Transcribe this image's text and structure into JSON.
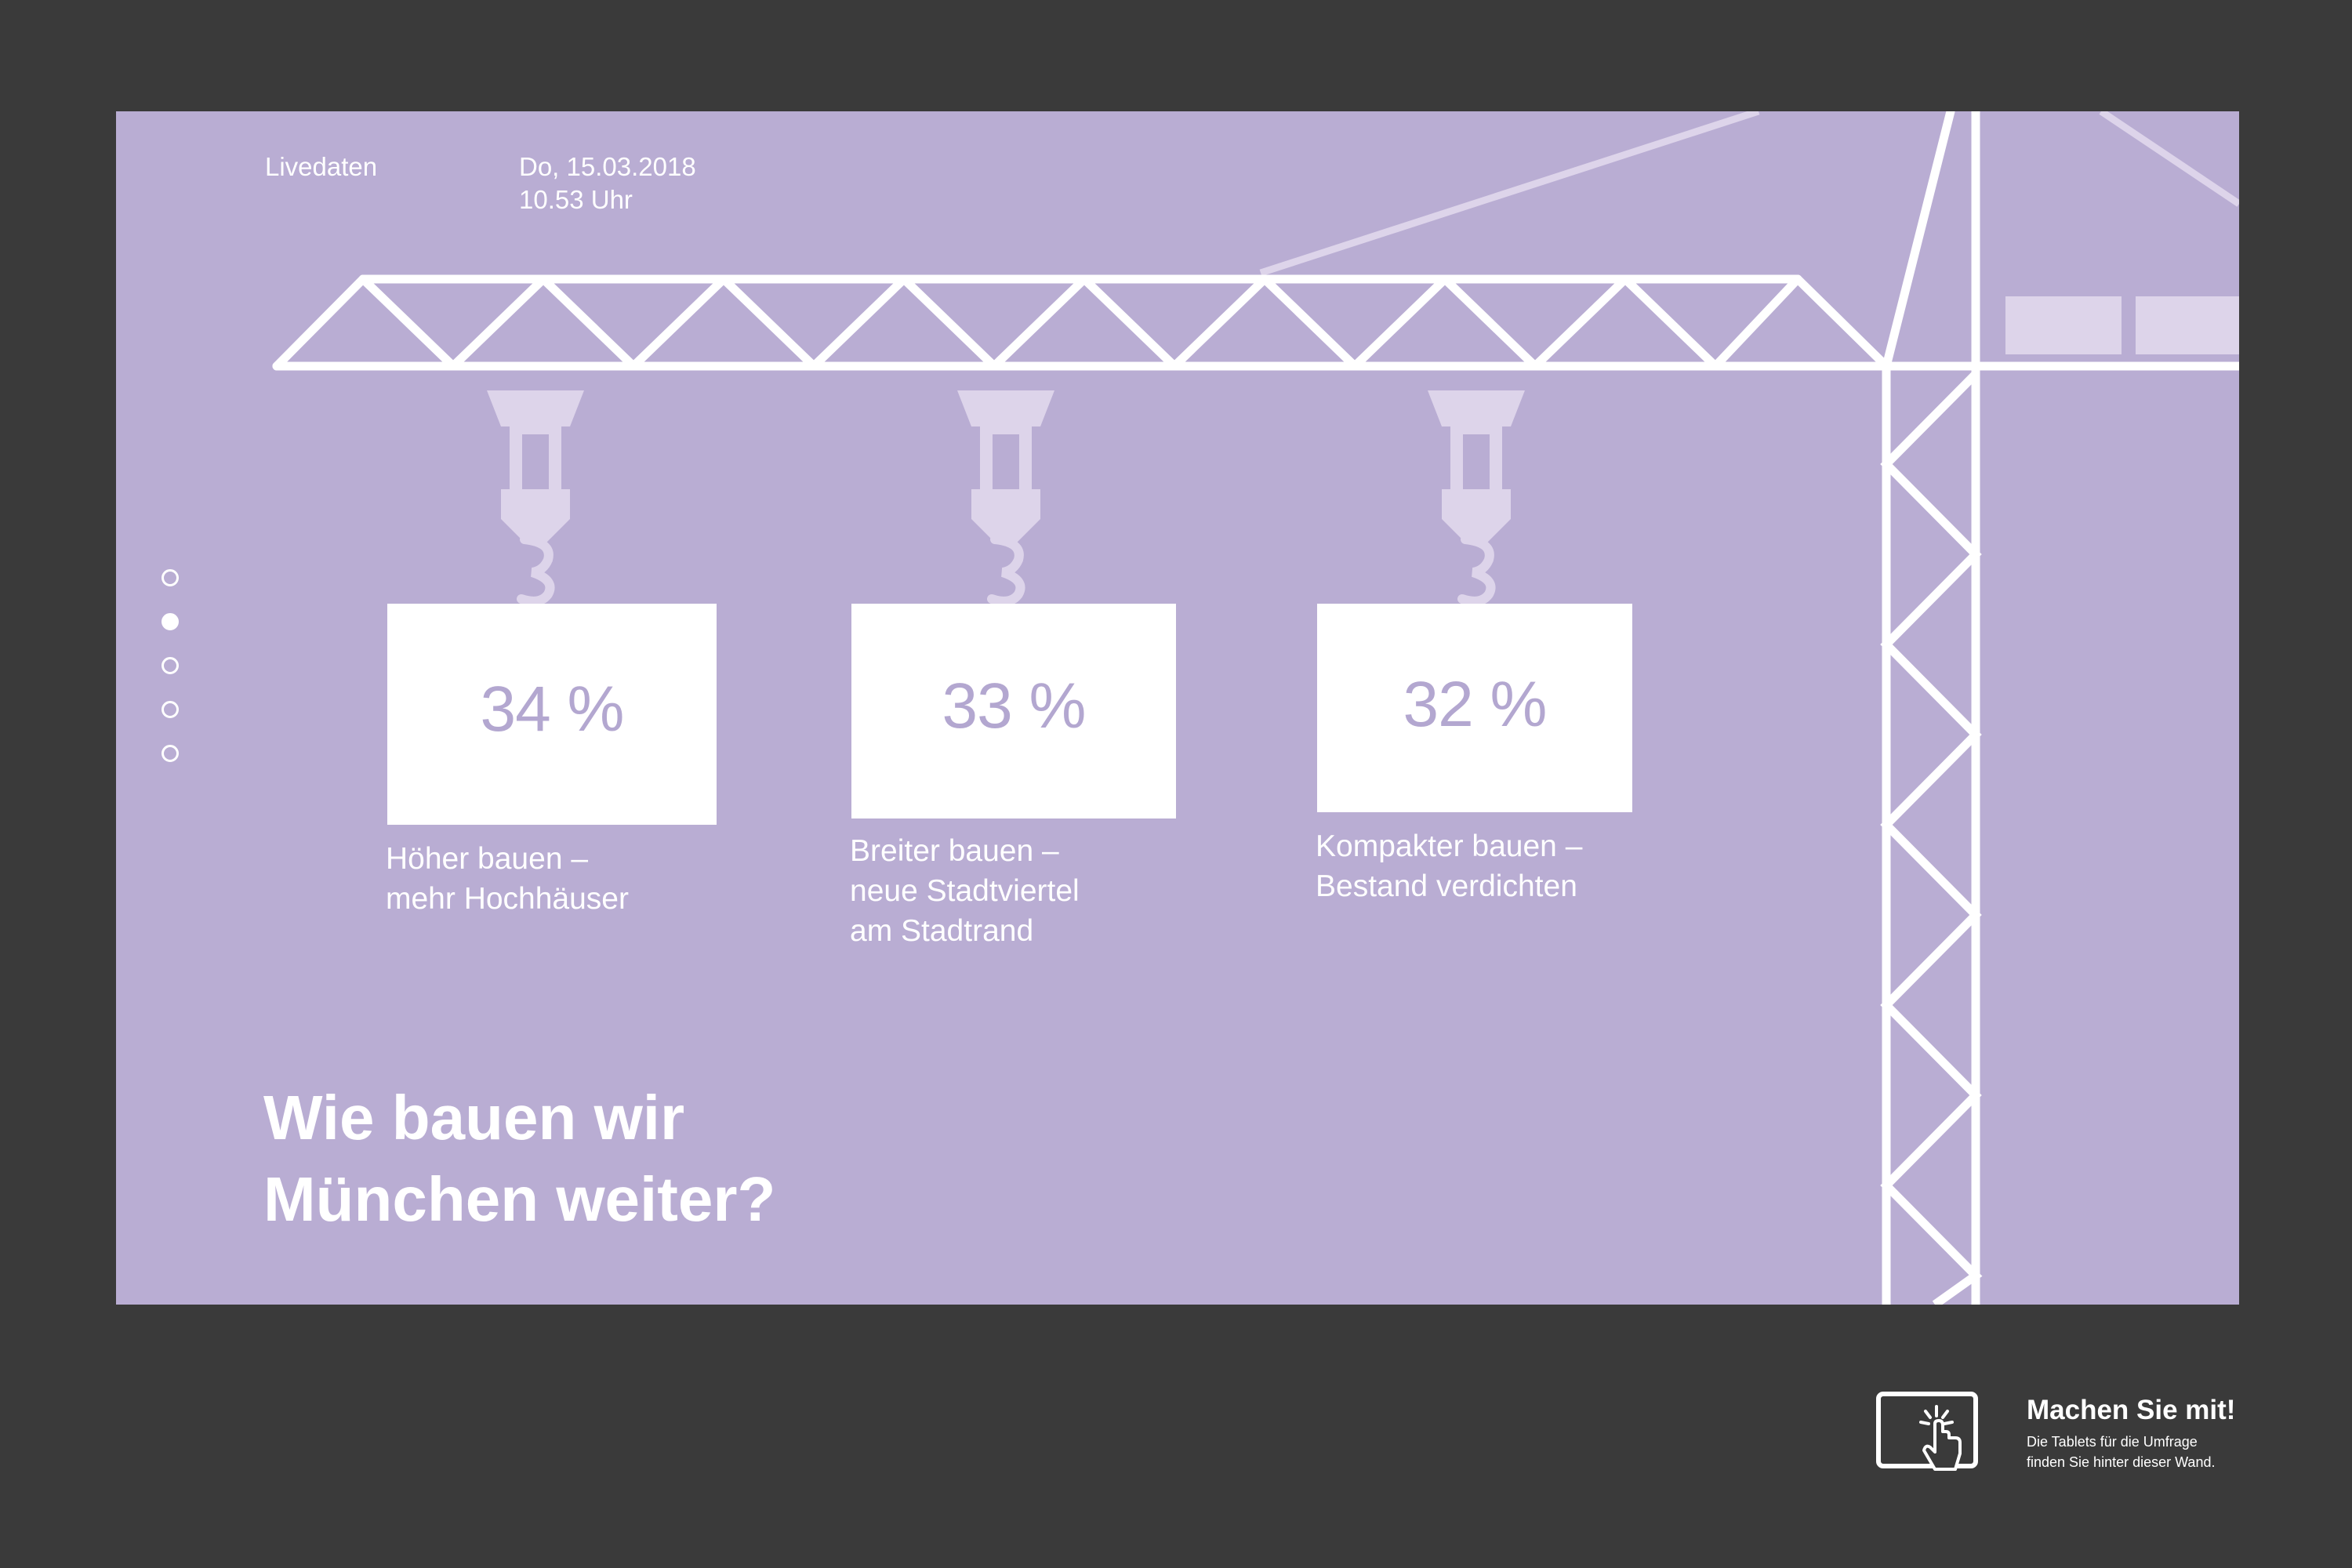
{
  "header": {
    "live_label": "Livedaten",
    "date": "Do, 15.03.2018",
    "time": "10.53 Uhr"
  },
  "pager": {
    "count": 5,
    "active_index": 1
  },
  "results": [
    {
      "value": "34 %",
      "label": "Höher bauen –\nmehr Hochhäuser"
    },
    {
      "value": "33 %",
      "label": "Breiter bauen –\nneue Stadtviertel\nam Stadtrand"
    },
    {
      "value": "32 %",
      "label": "Kompakter bauen –\nBestand verdichten"
    }
  ],
  "question": "Wie bauen wir\nMünchen weiter?",
  "cta": {
    "title": "Machen Sie mit!",
    "text": "Die Tablets für die Umfrage\nfinden Sie hinter dieser Wand.",
    "icon": "tablet-touch-icon"
  },
  "colors": {
    "background": "#3a3a3a",
    "screen": "#b9add3",
    "accent_text": "#b3a7d0",
    "hook": "#ddd4ea",
    "white": "#ffffff"
  }
}
